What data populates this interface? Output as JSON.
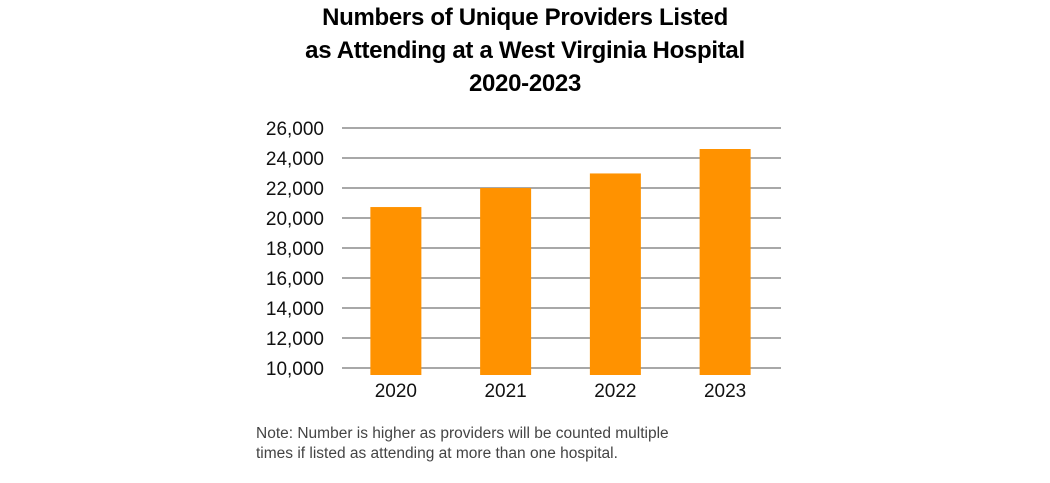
{
  "chart_data": {
    "type": "bar",
    "title_lines": [
      "Numbers of Unique Providers Listed",
      "as Attending at a West Virginia Hospital",
      "2020-2023"
    ],
    "categories": [
      "2020",
      "2021",
      "2022",
      "2023"
    ],
    "values": [
      20730,
      22000,
      22970,
      24600
    ],
    "xlabel": "",
    "ylabel": "",
    "ylim": [
      10000,
      26000
    ],
    "yticks": [
      10000,
      12000,
      14000,
      16000,
      18000,
      20000,
      22000,
      24000,
      26000
    ],
    "ytick_labels": [
      "10,000",
      "12,000",
      "14,000",
      "16,000",
      "18,000",
      "20,000",
      "22,000",
      "24,000",
      "26,000"
    ],
    "grid": true,
    "legend": "none",
    "bar_color": "#FF9200",
    "grid_color": "#8c8c8c",
    "note_lines": [
      "Note: Number is higher as providers will be counted multiple",
      "times if listed as attending at more than one hospital."
    ]
  }
}
